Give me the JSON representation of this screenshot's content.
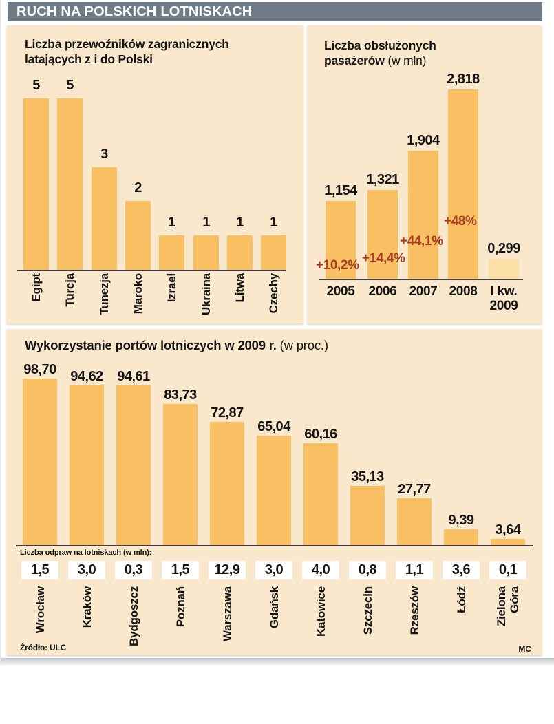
{
  "header": {
    "title": "RUCH NA POLSKICH LOTNISKACH"
  },
  "colors": {
    "header_bg": "#6F7B86",
    "panel_bg": "#FAE8CD",
    "bar": "#F8C063",
    "bar_light": "#FBDFA6",
    "growth_text": "#A93B1E",
    "axis": "#3C3C3C",
    "text": "#141414"
  },
  "chart_data": [
    {
      "id": "foreign-carriers",
      "type": "bar",
      "title": "Liczba przewoźników zagranicznych latających z i do Polski",
      "title_lines": [
        "Liczba przewoźników zagranicznych",
        "latających z i do Polski"
      ],
      "categories": [
        "Egipt",
        "Turcja",
        "Tunezja",
        "Maroko",
        "Izrael",
        "Ukraina",
        "Litwa",
        "Czechy"
      ],
      "values": [
        5,
        5,
        3,
        2,
        1,
        1,
        1,
        1
      ],
      "value_labels": [
        "5",
        "5",
        "3",
        "2",
        "1",
        "1",
        "1",
        "1"
      ],
      "ylim": [
        0,
        5
      ],
      "grid": false,
      "legend": false
    },
    {
      "id": "passengers-served",
      "type": "bar",
      "title": "Liczba obsłużonych pasażerów (w mln)",
      "title_lines": [
        "Liczba obsłużonych",
        "pasażerów"
      ],
      "title_suffix": "(w mln)",
      "categories": [
        "2005",
        "2006",
        "2007",
        "2008",
        "I kw.\n2009"
      ],
      "values": [
        1.154,
        1.321,
        1.904,
        2.818,
        0.299
      ],
      "value_labels": [
        "1,154",
        "1,321",
        "1,904",
        "2,818",
        "0,299"
      ],
      "growth_labels": [
        "+10,2%",
        "+14,4%",
        "+44,1%",
        "+48%"
      ],
      "light_bars": [
        4
      ],
      "ylim": [
        0,
        2.9
      ],
      "grid": false,
      "legend": false
    },
    {
      "id": "airport-utilization",
      "type": "bar",
      "title": "Wykorzystanie portów lotniczych w 2009 r. (w proc.)",
      "title_bold": "Wykorzystanie portów lotniczych w 2009 r.",
      "title_suffix": "(w proc.)",
      "categories": [
        "Wrocław",
        "Kraków",
        "Bydgoszcz",
        "Poznań",
        "Warszawa",
        "Gdańsk",
        "Katowice",
        "Szczecin",
        "Rzeszów",
        "Łódź",
        "Zielona\nGóra"
      ],
      "values": [
        98.7,
        94.62,
        94.61,
        83.73,
        72.87,
        65.04,
        60.16,
        35.13,
        27.77,
        9.39,
        3.64
      ],
      "value_labels": [
        "98,70",
        "94,62",
        "94,61",
        "83,73",
        "72,87",
        "65,04",
        "60,16",
        "35,13",
        "27,77",
        "9,39",
        "3,64"
      ],
      "checkin_label": "Liczba  odpraw na lotniskach (w mln):",
      "checkin_values": [
        "1,5",
        "3,0",
        "0,3",
        "1,5",
        "12,9",
        "3,0",
        "4,0",
        "0,8",
        "1,1",
        "3,6",
        "0,1"
      ],
      "ylim": [
        0,
        100
      ],
      "grid": false,
      "legend": false
    }
  ],
  "footer": {
    "source": "Źródło: ULC",
    "credit": "MC"
  }
}
